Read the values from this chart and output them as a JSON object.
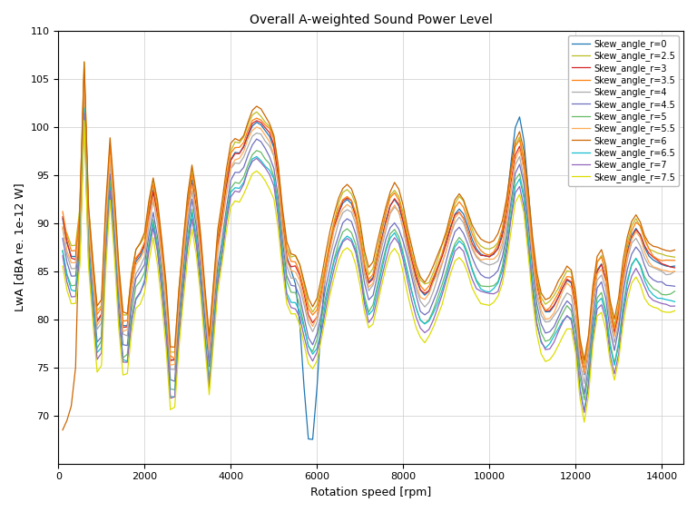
{
  "title": "Overall A-weighted Sound Power Level",
  "xlabel": "Rotation speed [rpm]",
  "ylabel": "LwA [dBA re. 1e-12 W]",
  "series": [
    {
      "label": "Skew_angle_r=0",
      "color": "#1f77b4"
    },
    {
      "label": "Skew_angle_r=2.5",
      "color": "#bcbd22"
    },
    {
      "label": "Skew_angle_r=3",
      "color": "#d62728"
    },
    {
      "label": "Skew_angle_r=3.5",
      "color": "#ff7f0e"
    },
    {
      "label": "Skew_angle_r=4",
      "color": "#aaaaaa"
    },
    {
      "label": "Skew_angle_r=4.5",
      "color": "#7070c0"
    },
    {
      "label": "Skew_angle_r=5",
      "color": "#66bb66"
    },
    {
      "label": "Skew_angle_r=5.5",
      "color": "#ffaa55"
    },
    {
      "label": "Skew_angle_r=6",
      "color": "#cc6600"
    },
    {
      "label": "Skew_angle_r=6.5",
      "color": "#17becf"
    },
    {
      "label": "Skew_angle_r=7",
      "color": "#9467bd"
    },
    {
      "label": "Skew_angle_r=7.5",
      "color": "#dddd00"
    }
  ],
  "xlim": [
    0,
    14500
  ],
  "ylim": [
    65,
    110
  ],
  "xticks": [
    0,
    2000,
    4000,
    6000,
    8000,
    10000,
    12000,
    14000
  ],
  "yticks": [
    70,
    75,
    80,
    85,
    90,
    95,
    100,
    105,
    110
  ],
  "figsize": [
    7.68,
    5.64
  ],
  "dpi": 100
}
